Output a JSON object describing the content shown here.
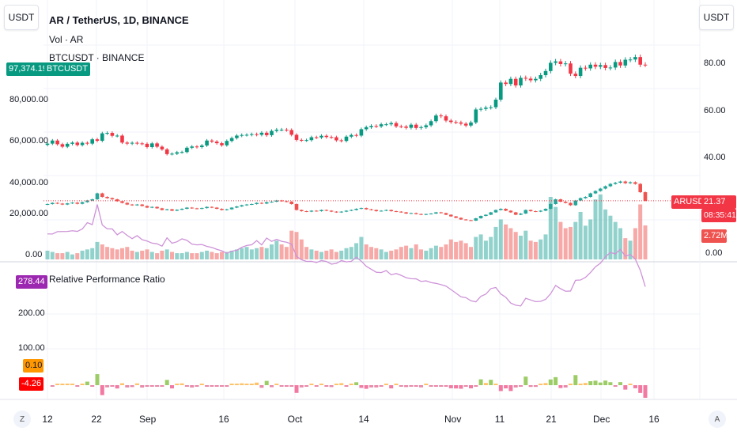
{
  "header": {
    "currency_left": "USDT",
    "currency_right": "USDT",
    "symbol_title": "AR / TetherUS, 1D, BINANCE",
    "volume_legend": "Vol · AR",
    "compare_legend": "BTCUSDT · BINANCE"
  },
  "left_axis": {
    "ticks": [
      "80,000.00",
      "60,000.00",
      "40,000.00",
      "20,000.00",
      "0.00"
    ],
    "btc_last": "97,374.19",
    "btc_label": "BTCUSDT"
  },
  "right_axis": {
    "ticks": [
      "80.00",
      "60.00",
      "40.00",
      "0.00"
    ],
    "ar_label": "ARUSDT",
    "ar_last": "21.37",
    "countdown": "08:35:41",
    "volume_last": "2.72M"
  },
  "indicator": {
    "title": "Relative Performance Ratio",
    "last_value": "278.44",
    "hist_value_1": "0.10",
    "hist_value_2": "-4.26",
    "ticks": [
      "200.00",
      "100.00"
    ]
  },
  "time_axis": {
    "labels": [
      "12",
      "22",
      "Sep",
      "16",
      "Oct",
      "14",
      "Nov",
      "11",
      "21",
      "Dec",
      "16"
    ],
    "left_button": "Z",
    "right_button": "A"
  },
  "colors": {
    "up": "#26a69a",
    "down": "#ef5350",
    "btc_up": "#089981",
    "btc_down": "#f23645",
    "ratio_line": "#ce93d8",
    "ratio_tag": "#9c27b0",
    "orange": "#ff9800",
    "red": "#ff0000"
  },
  "chart_data": {
    "type": "candlestick",
    "start_date": "Aug 12",
    "ar_close": [
      20.0,
      20.5,
      20.2,
      19.8,
      20.3,
      20.6,
      20.1,
      20.8,
      21.5,
      22.0,
      24.5,
      23.0,
      22.5,
      22.0,
      21.2,
      20.5,
      19.8,
      19.5,
      19.8,
      19.2,
      18.5,
      18.8,
      18.2,
      17.5,
      17.8,
      17.2,
      17.6,
      18.0,
      18.5,
      18.2,
      18.0,
      18.3,
      18.8,
      18.5,
      18.0,
      17.5,
      17.8,
      18.5,
      19.0,
      19.5,
      19.8,
      20.0,
      20.5,
      20.2,
      20.8,
      21.0,
      21.5,
      21.2,
      21.0,
      20.0,
      17.5,
      17.0,
      16.8,
      17.2,
      17.0,
      17.5,
      17.2,
      16.8,
      16.5,
      16.8,
      17.2,
      17.5,
      18.0,
      18.3,
      17.8,
      17.5,
      17.0,
      17.2,
      17.5,
      17.0,
      16.8,
      16.5,
      16.0,
      16.2,
      15.8,
      15.5,
      15.8,
      16.0,
      16.5,
      16.2,
      15.5,
      14.8,
      14.2,
      13.5,
      13.2,
      13.0,
      14.0,
      15.0,
      15.5,
      16.5,
      17.5,
      18.0,
      17.2,
      16.5,
      15.5,
      16.0,
      17.5,
      17.0,
      16.8,
      17.2,
      18.0,
      20.0,
      22.0,
      21.0,
      20.5,
      19.5,
      21.5,
      22.5,
      23.0,
      24.5,
      25.5,
      26.5,
      27.5,
      28.5,
      29.0,
      29.5,
      28.8,
      29.2,
      28.5,
      25.0,
      21.37
    ],
    "btc_close": [
      59000,
      60500,
      58700,
      57500,
      58900,
      59500,
      58300,
      59400,
      59000,
      61100,
      60400,
      64000,
      64200,
      62800,
      62900,
      59500,
      59000,
      59400,
      59100,
      58900,
      57300,
      59100,
      57500,
      56200,
      53900,
      54100,
      54800,
      54900,
      57000,
      57600,
      57300,
      58100,
      60500,
      60000,
      59200,
      58200,
      60300,
      61700,
      62900,
      63200,
      63300,
      63600,
      63300,
      64300,
      63100,
      65200,
      65800,
      65800,
      65600,
      63300,
      60800,
      60600,
      60700,
      62100,
      62000,
      62800,
      62200,
      62100,
      60600,
      60300,
      62400,
      63200,
      62900,
      66000,
      67000,
      67600,
      67400,
      68400,
      68400,
      69000,
      67400,
      67300,
      66700,
      68200,
      66600,
      67000,
      67900,
      69900,
      72700,
      72300,
      70200,
      69500,
      69300,
      68700,
      67800,
      69300,
      75600,
      75900,
      76500,
      76700,
      80400,
      88700,
      88000,
      90500,
      87300,
      91000,
      90600,
      89800,
      90500,
      92300,
      94300,
      98300,
      99000,
      97700,
      98000,
      93000,
      91900,
      95900,
      95600,
      97400,
      96400,
      97200,
      95800,
      96000,
      98700,
      97000,
      99800,
      99900,
      101100,
      97400,
      97374.19
    ],
    "volume_m": [
      0.7,
      0.6,
      0.5,
      0.5,
      0.6,
      0.4,
      0.5,
      0.7,
      0.8,
      0.9,
      1.4,
      1.2,
      1.0,
      0.9,
      0.8,
      0.9,
      1.0,
      0.7,
      0.6,
      0.7,
      0.8,
      0.6,
      0.5,
      0.7,
      0.8,
      0.6,
      0.5,
      0.5,
      0.6,
      0.5,
      0.5,
      0.6,
      0.7,
      0.6,
      0.5,
      0.6,
      0.6,
      0.7,
      0.8,
      0.9,
      1.0,
      0.8,
      0.9,
      1.0,
      0.9,
      1.2,
      1.5,
      1.2,
      1.0,
      2.3,
      2.2,
      1.6,
      1.0,
      0.8,
      0.7,
      0.6,
      0.7,
      0.8,
      0.6,
      0.7,
      0.9,
      1.0,
      1.3,
      1.8,
      1.2,
      1.0,
      0.9,
      0.8,
      0.6,
      0.7,
      0.8,
      1.0,
      1.1,
      0.9,
      1.2,
      0.8,
      0.7,
      0.9,
      1.1,
      1.0,
      1.2,
      1.6,
      1.4,
      1.5,
      1.3,
      1.0,
      1.8,
      2.0,
      1.5,
      1.8,
      2.6,
      3.2,
      2.8,
      2.5,
      2.2,
      1.9,
      2.3,
      1.5,
      1.4,
      1.6,
      2.0,
      5.0,
      4.2,
      3.0,
      2.5,
      2.6,
      3.0,
      3.8,
      2.7,
      3.2,
      4.8,
      5.2,
      4.0,
      3.5,
      3.0,
      2.5,
      1.7,
      1.5,
      2.5,
      4.4,
      2.72
    ]
  }
}
